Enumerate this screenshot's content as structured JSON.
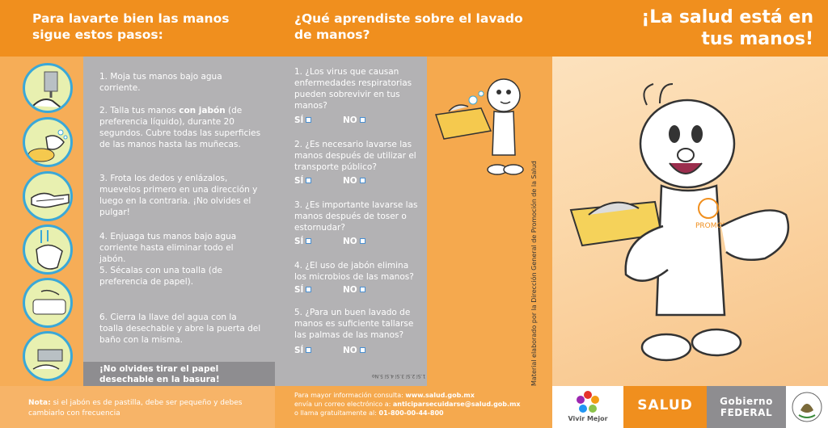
{
  "header": {
    "left_title_line1": "Para lavarte bien las manos",
    "left_title_line2": "sigue estos pasos:",
    "mid_title_line1": "¿Qué aprendiste sobre el lavado",
    "mid_title_line2": "de manos?",
    "right_title_line1": "¡La salud está en",
    "right_title_line2": "tus manos!"
  },
  "steps": [
    {
      "num": "1.",
      "pre": "Moja tus manos bajo agua corriente.",
      "bold": "",
      "post": ""
    },
    {
      "num": "2.",
      "pre": "Talla tus manos ",
      "bold": "con jabón",
      "post": " (de preferencia líquido), durante 20 segundos. Cubre todas las superficies de las manos hasta las muñecas."
    },
    {
      "num": "3.",
      "pre": "Frota los dedos y enlázalos, muevelos primero en una dirección y luego en la contraria. ¡No olvides el pulgar!",
      "bold": "",
      "post": ""
    },
    {
      "num": "4.",
      "pre": "Enjuaga tus manos bajo agua corriente hasta eliminar todo el jabón.",
      "bold": "",
      "post": ""
    },
    {
      "num": "5.",
      "pre": "Sécalas con una toalla (de preferencia de papel).",
      "bold": "",
      "post": ""
    },
    {
      "num": "6.",
      "pre": "Cierra la llave del agua  con  la toalla desechable y  abre la puerta del baño con la misma.",
      "bold": "",
      "post": ""
    }
  ],
  "reminder_line1": "¡No olvides tirar el papel",
  "reminder_line2": "desechable en la basura!",
  "quiz": [
    {
      "num": "1.",
      "text": "¿Los virus que causan enfermedades respiratorias pueden sobrevivir en tus manos?"
    },
    {
      "num": "2.",
      "text": "¿Es necesario lavarse las manos después de utilizar el transporte público?"
    },
    {
      "num": "3.",
      "text": "¿Es importante lavarse las manos después de toser o estornudar?"
    },
    {
      "num": "4.",
      "text": "¿El uso de jabón elimina los microbios de las manos?"
    },
    {
      "num": "5.",
      "text": "¿Para un buen lavado de manos es suficiente tallarse las palmas de las manos?"
    }
  ],
  "answer_yes": "SÍ",
  "answer_no": "NO",
  "answers_upside": "1.Sí 2.Sí 3.Sí 4.Sí 5.No",
  "footer": {
    "note_bold": "Nota:",
    "note_text": " si el jabón es de pastilla, debe ser pequeño y debes cambiarlo con frecuencia",
    "contact_line1_pre": "Para mayor información consulta: ",
    "contact_line1_bold": "www.salud.gob.mx",
    "contact_line2_pre": "envía un correo electrónico a: ",
    "contact_line2_bold": "anticiparsecuidarse@salud.gob.mx",
    "contact_line3_pre": "o llama gratuitamente al: ",
    "contact_line3_bold": "01-800-00-44-800"
  },
  "vertical_note": "Material elaborado por la Dirección General de Promoción de la Salud",
  "logos": {
    "vivir_mejor": "Vivir Mejor",
    "salud": "SALUD",
    "gobierno_line1": "Gobierno",
    "gobierno_line2": "FEDERAL"
  },
  "mascot_shirt": "PROMOI",
  "colors": {
    "orange_dark": "#f08f1e",
    "orange_light": "#f6ad57",
    "gray": "#b3b2b4",
    "gray_dark": "#8e8d90",
    "accent_blue": "#3aa8d8"
  }
}
